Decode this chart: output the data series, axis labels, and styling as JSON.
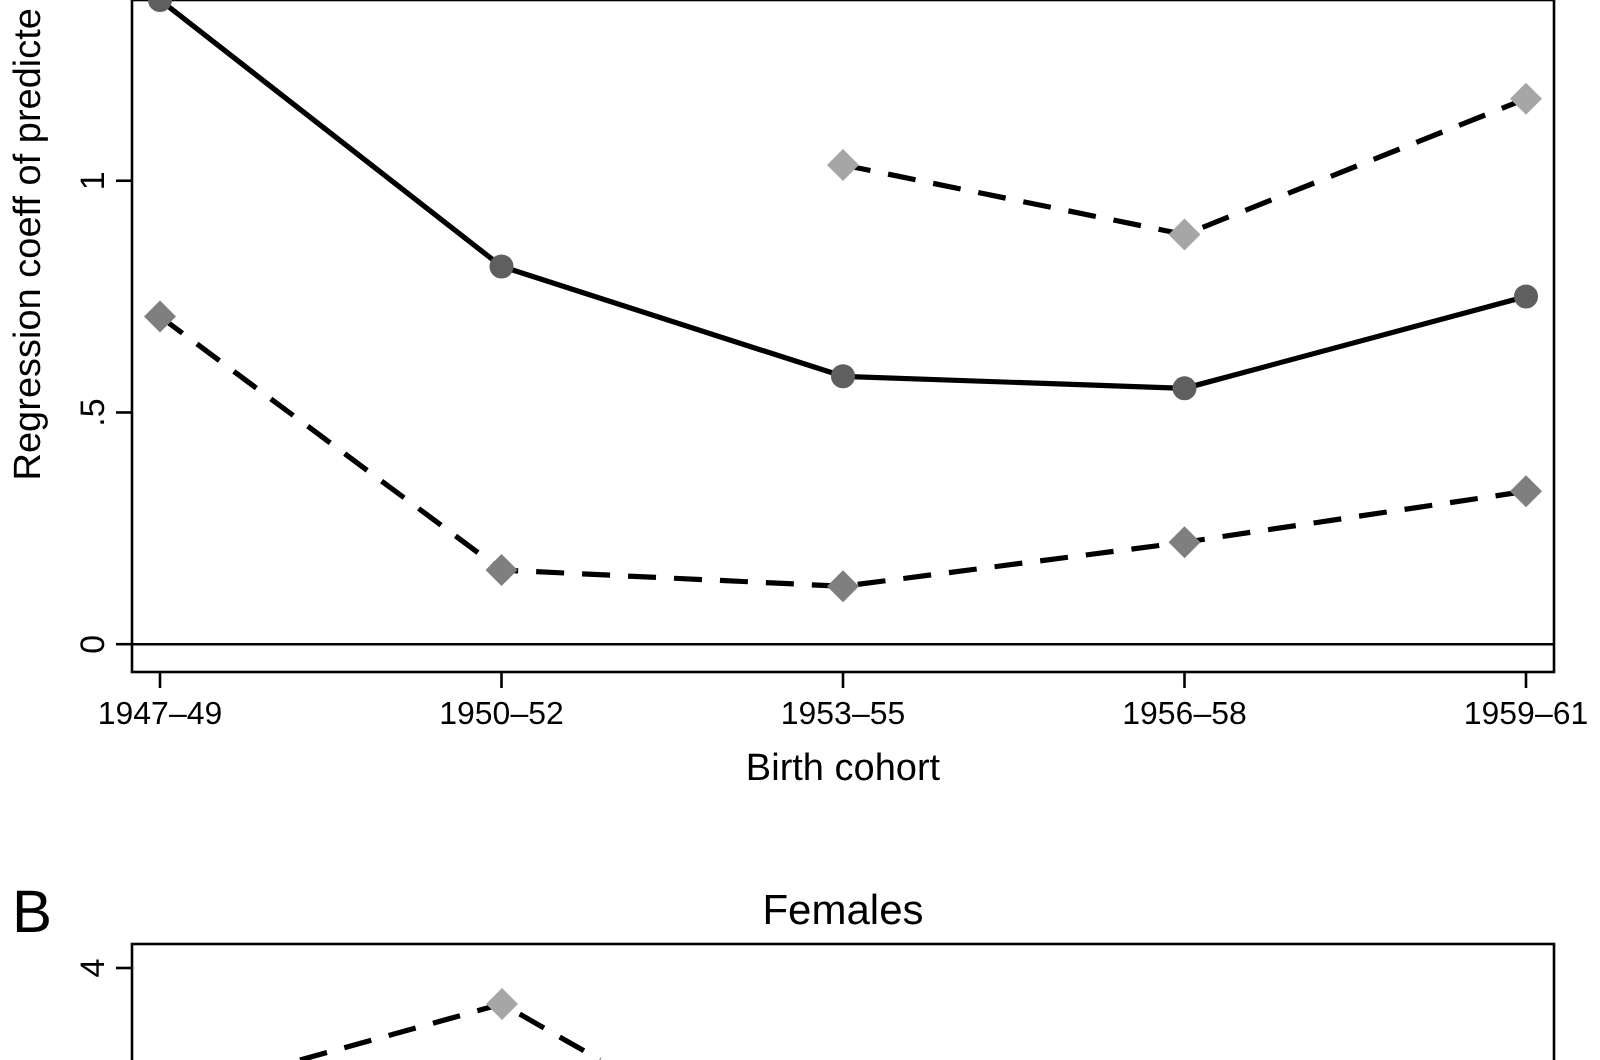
{
  "chart_data": [
    {
      "type": "line",
      "xlabel": "Birth cohort",
      "ylabel": "Regression coeff of predicte",
      "categories": [
        "1947–49",
        "1950–52",
        "1953–55",
        "1956–58",
        "1959–61"
      ],
      "ylim": [
        -0.06,
        1.39
      ],
      "yticks": [
        0,
        {
          "value": 0.5,
          "label": ".5"
        },
        1
      ],
      "ref_lines": [
        {
          "axis": "y",
          "value": 0,
          "color": "#000000"
        }
      ],
      "grid": false,
      "series": [
        {
          "color": "#a6a6a6",
          "marker": "diamond",
          "line_style": "dashed",
          "values": [
            null,
            null,
            1.034,
            0.884,
            1.177
          ]
        },
        {
          "color": "#5f5f5f",
          "marker": "circle",
          "line_style": "solid",
          "values": [
            1.39,
            0.815,
            0.578,
            0.552,
            0.75
          ]
        },
        {
          "color": "#7f7f7f",
          "marker": "diamond",
          "line_style": "dashed",
          "values": [
            0.707,
            0.16,
            0.125,
            0.22,
            0.33
          ]
        }
      ]
    },
    {
      "type": "other",
      "title": "Females",
      "annotations": [
        "B",
        "4"
      ]
    }
  ]
}
